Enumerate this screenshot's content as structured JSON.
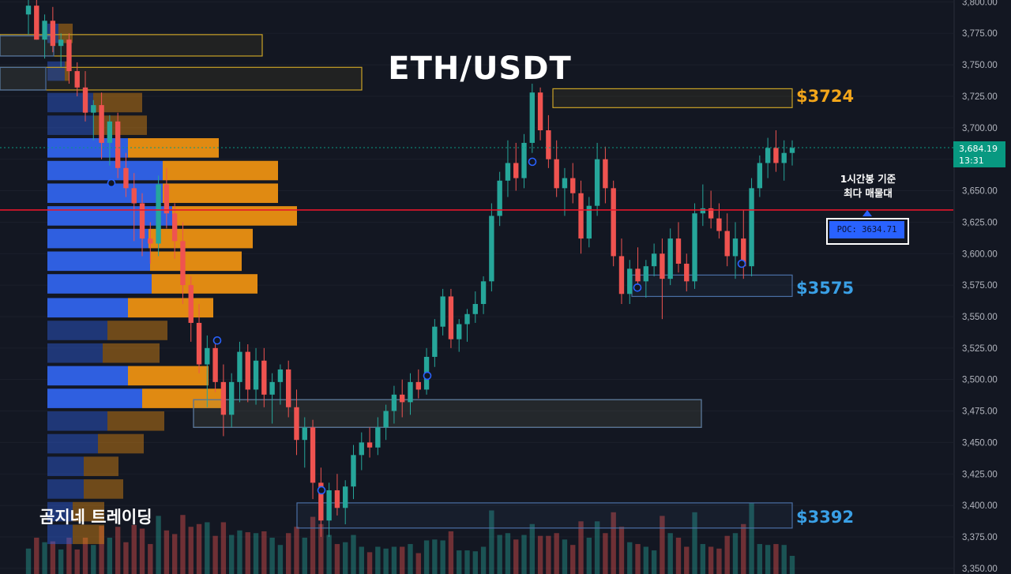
{
  "title": "ETH/USDT",
  "watermark": "곰지네 트레이딩",
  "levels": {
    "upper": "$3724",
    "mid": "$3575",
    "lower": "$3392"
  },
  "annotation": {
    "line1": "1시간봉 기준",
    "line2": "최다 매물대"
  },
  "poc": {
    "label": "POC: 3634.71",
    "value": 3634.71
  },
  "current": {
    "price": "3,684.19",
    "countdown": "13:31",
    "value": 3684.19
  },
  "colors": {
    "background": "#131722",
    "up": "#26a69a",
    "down": "#ef5350",
    "vp_buy": "#2f5fe0",
    "vp_sell": "#e08a12",
    "poc_line": "#e5162b",
    "resistance_box": "#c9a227",
    "support_box": "#4a6fa5",
    "current_price": "#089981"
  },
  "chart_data": {
    "type": "candlestick",
    "timeframe": "1h",
    "y_axis": {
      "ticks": [
        "3,800.00",
        "3,775.00",
        "3,750.00",
        "3,725.00",
        "3,700.00",
        "3,675.00",
        "3,650.00",
        "3,625.00",
        "3,600.00",
        "3,575.00",
        "3,550.00",
        "3,525.00",
        "3,500.00",
        "3,475.00",
        "3,450.00",
        "3,425.00",
        "3,400.00",
        "3,375.00",
        "3,350.00"
      ],
      "tick_values": [
        3800,
        3775,
        3750,
        3725,
        3700,
        3675,
        3650,
        3625,
        3600,
        3575,
        3550,
        3525,
        3500,
        3475,
        3450,
        3425,
        3400,
        3375,
        3350
      ],
      "range": [
        3345.5,
        3801.5
      ]
    },
    "candles": [
      [
        3790,
        3802,
        3774,
        3797
      ],
      [
        3797,
        3810,
        3770,
        3770
      ],
      [
        3770,
        3790,
        3755,
        3785
      ],
      [
        3785,
        3796,
        3760,
        3765
      ],
      [
        3765,
        3775,
        3748,
        3770
      ],
      [
        3770,
        3775,
        3735,
        3745
      ],
      [
        3745,
        3752,
        3725,
        3732
      ],
      [
        3732,
        3745,
        3705,
        3712
      ],
      [
        3712,
        3722,
        3690,
        3718
      ],
      [
        3718,
        3728,
        3675,
        3688
      ],
      [
        3688,
        3710,
        3670,
        3705
      ],
      [
        3705,
        3712,
        3660,
        3668
      ],
      [
        3668,
        3680,
        3645,
        3652
      ],
      [
        3652,
        3664,
        3610,
        3640
      ],
      [
        3640,
        3648,
        3598,
        3612
      ],
      [
        3612,
        3625,
        3592,
        3608
      ],
      [
        3608,
        3662,
        3598,
        3655
      ],
      [
        3655,
        3668,
        3620,
        3632
      ],
      [
        3632,
        3640,
        3596,
        3610
      ],
      [
        3610,
        3625,
        3560,
        3575
      ],
      [
        3575,
        3582,
        3530,
        3545
      ],
      [
        3545,
        3560,
        3505,
        3512
      ],
      [
        3512,
        3535,
        3478,
        3525
      ],
      [
        3525,
        3532,
        3490,
        3498
      ],
      [
        3498,
        3512,
        3455,
        3472
      ],
      [
        3472,
        3505,
        3462,
        3498
      ],
      [
        3498,
        3530,
        3482,
        3522
      ],
      [
        3522,
        3528,
        3482,
        3492
      ],
      [
        3492,
        3525,
        3480,
        3515
      ],
      [
        3515,
        3525,
        3478,
        3488
      ],
      [
        3488,
        3505,
        3465,
        3498
      ],
      [
        3498,
        3512,
        3480,
        3508
      ],
      [
        3508,
        3515,
        3470,
        3478
      ],
      [
        3478,
        3492,
        3440,
        3452
      ],
      [
        3452,
        3470,
        3430,
        3462
      ],
      [
        3462,
        3468,
        3405,
        3418
      ],
      [
        3418,
        3430,
        3375,
        3388
      ],
      [
        3388,
        3418,
        3375,
        3412
      ],
      [
        3412,
        3425,
        3392,
        3398
      ],
      [
        3398,
        3420,
        3385,
        3415
      ],
      [
        3415,
        3448,
        3405,
        3440
      ],
      [
        3440,
        3458,
        3428,
        3450
      ],
      [
        3450,
        3462,
        3438,
        3446
      ],
      [
        3446,
        3470,
        3440,
        3462
      ],
      [
        3462,
        3480,
        3452,
        3475
      ],
      [
        3475,
        3495,
        3465,
        3488
      ],
      [
        3488,
        3500,
        3470,
        3482
      ],
      [
        3482,
        3505,
        3472,
        3498
      ],
      [
        3498,
        3508,
        3485,
        3492
      ],
      [
        3492,
        3525,
        3488,
        3518
      ],
      [
        3518,
        3548,
        3510,
        3542
      ],
      [
        3542,
        3572,
        3535,
        3566
      ],
      [
        3566,
        3572,
        3525,
        3532
      ],
      [
        3532,
        3548,
        3522,
        3544
      ],
      [
        3544,
        3556,
        3530,
        3552
      ],
      [
        3552,
        3570,
        3545,
        3560
      ],
      [
        3560,
        3582,
        3552,
        3578
      ],
      [
        3578,
        3640,
        3570,
        3630
      ],
      [
        3630,
        3665,
        3622,
        3658
      ],
      [
        3658,
        3690,
        3645,
        3672
      ],
      [
        3672,
        3688,
        3650,
        3660
      ],
      [
        3660,
        3695,
        3652,
        3688
      ],
      [
        3688,
        3735,
        3680,
        3728
      ],
      [
        3728,
        3732,
        3690,
        3698
      ],
      [
        3698,
        3710,
        3668,
        3675
      ],
      [
        3675,
        3690,
        3645,
        3652
      ],
      [
        3652,
        3668,
        3630,
        3660
      ],
      [
        3660,
        3672,
        3640,
        3648
      ],
      [
        3648,
        3658,
        3600,
        3612
      ],
      [
        3612,
        3645,
        3605,
        3638
      ],
      [
        3638,
        3688,
        3630,
        3675
      ],
      [
        3675,
        3685,
        3640,
        3652
      ],
      [
        3652,
        3658,
        3590,
        3598
      ],
      [
        3598,
        3612,
        3560,
        3568
      ],
      [
        3568,
        3595,
        3560,
        3588
      ],
      [
        3588,
        3605,
        3572,
        3578
      ],
      [
        3578,
        3595,
        3565,
        3590
      ],
      [
        3590,
        3608,
        3582,
        3600
      ],
      [
        3600,
        3612,
        3548,
        3580
      ],
      [
        3580,
        3620,
        3575,
        3612
      ],
      [
        3612,
        3625,
        3585,
        3592
      ],
      [
        3592,
        3600,
        3570,
        3578
      ],
      [
        3578,
        3640,
        3572,
        3632
      ],
      [
        3632,
        3655,
        3622,
        3636
      ],
      [
        3636,
        3650,
        3620,
        3628
      ],
      [
        3628,
        3640,
        3612,
        3618
      ],
      [
        3618,
        3632,
        3590,
        3598
      ],
      [
        3598,
        3625,
        3580,
        3612
      ],
      [
        3612,
        3635,
        3580,
        3590
      ],
      [
        3590,
        3660,
        3582,
        3652
      ],
      [
        3652,
        3678,
        3645,
        3672
      ],
      [
        3672,
        3692,
        3660,
        3684
      ],
      [
        3684,
        3698,
        3665,
        3672
      ],
      [
        3672,
        3690,
        3658,
        3680
      ],
      [
        3680,
        3690,
        3670,
        3684
      ]
    ],
    "poc_price": 3634.71,
    "current_price": 3684.19,
    "level_labels": [
      "$3724",
      "$3575",
      "$3392"
    ],
    "volume_profile": [
      {
        "price": 3775,
        "buy": 14,
        "sell": 18
      },
      {
        "price": 3745,
        "buy": 22,
        "sell": 6
      },
      {
        "price": 3720,
        "buy": 58,
        "sell": 62
      },
      {
        "price": 3702,
        "buy": 58,
        "sell": 68
      },
      {
        "price": 3684,
        "buy": 102,
        "sell": 115
      },
      {
        "price": 3666,
        "buy": 146,
        "sell": 146
      },
      {
        "price": 3648,
        "buy": 146,
        "sell": 146
      },
      {
        "price": 3630,
        "buy": 158,
        "sell": 158
      },
      {
        "price": 3612,
        "buy": 128,
        "sell": 132
      },
      {
        "price": 3594,
        "buy": 130,
        "sell": 116
      },
      {
        "price": 3576,
        "buy": 132,
        "sell": 134
      },
      {
        "price": 3557,
        "buy": 102,
        "sell": 108
      },
      {
        "price": 3539,
        "buy": 76,
        "sell": 76
      },
      {
        "price": 3521,
        "buy": 70,
        "sell": 72
      },
      {
        "price": 3503,
        "buy": 102,
        "sell": 102
      },
      {
        "price": 3485,
        "buy": 120,
        "sell": 106
      },
      {
        "price": 3467,
        "buy": 76,
        "sell": 72
      },
      {
        "price": 3449,
        "buy": 64,
        "sell": 58
      },
      {
        "price": 3431,
        "buy": 46,
        "sell": 44
      },
      {
        "price": 3413,
        "buy": 46,
        "sell": 50
      },
      {
        "price": 3395,
        "buy": 32,
        "sell": 40
      },
      {
        "price": 3377,
        "buy": 32,
        "sell": 40
      }
    ],
    "zones": [
      {
        "kind": "resistance",
        "top": 3774,
        "bottom": 3757
      },
      {
        "kind": "resistance",
        "top": 3748,
        "bottom": 3730
      },
      {
        "kind": "resistance",
        "top": 3731,
        "bottom": 3716
      },
      {
        "kind": "resistance",
        "top": 3484,
        "bottom": 3462
      },
      {
        "kind": "support",
        "top": 3773,
        "bottom": 3757
      },
      {
        "kind": "support",
        "top": 3748,
        "bottom": 3730
      },
      {
        "kind": "support",
        "top": 3583,
        "bottom": 3566
      },
      {
        "kind": "support",
        "top": 3484,
        "bottom": 3462
      },
      {
        "kind": "support",
        "top": 3402,
        "bottom": 3382
      }
    ]
  }
}
